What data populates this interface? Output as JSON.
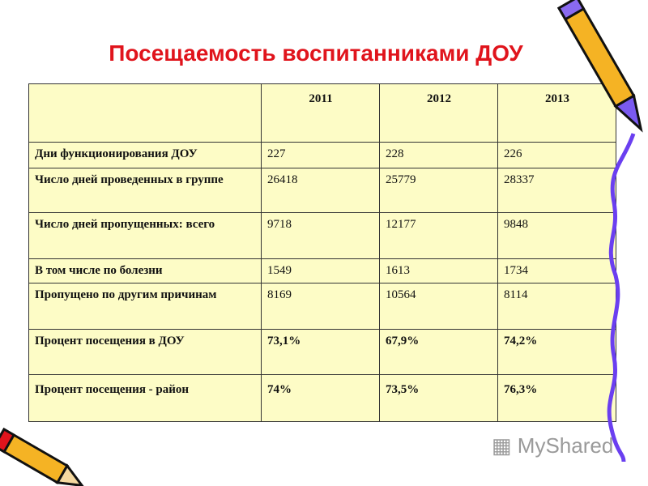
{
  "title": "Посещаемость воспитанниками ДОУ",
  "table": {
    "headers": [
      "",
      "2011",
      "2012",
      "2013"
    ],
    "rows": [
      {
        "label": "Дни функционирования ДОУ",
        "values": [
          "227",
          "228",
          "226"
        ],
        "bold": false
      },
      {
        "label": "Число дней проведенных в группе",
        "values": [
          "26418",
          "25779",
          "28337"
        ],
        "bold": false
      },
      {
        "label": "Число дней пропущенных: всего",
        "values": [
          "9718",
          "12177",
          "9848"
        ],
        "bold": false
      },
      {
        "label": "В том числе по болезни",
        "values": [
          "1549",
          "1613",
          "1734"
        ],
        "bold": false
      },
      {
        "label": "Пропущено по другим причинам",
        "values": [
          "8169",
          "10564",
          "8114"
        ],
        "bold": false
      },
      {
        "label": "Процент посещения в ДОУ",
        "values": [
          "73,1%",
          "67,9%",
          "74,2%"
        ],
        "bold": true
      },
      {
        "label": "Процент посещения - район",
        "values": [
          "74%",
          "73,5%",
          "76,3%"
        ],
        "bold": true
      }
    ]
  },
  "watermark": "MyShared",
  "colors": {
    "title": "#e0141c",
    "table_fill": "#fdfcc6",
    "pencil": "#f5b324",
    "squiggle": "#6a3ff0"
  }
}
